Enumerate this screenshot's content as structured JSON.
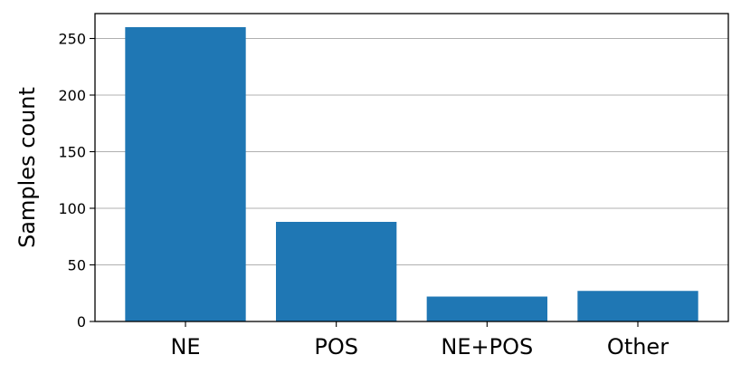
{
  "chart_data": {
    "type": "bar",
    "categories": [
      "NE",
      "POS",
      "NE+POS",
      "Other"
    ],
    "values": [
      260,
      88,
      22,
      27
    ],
    "title": "",
    "xlabel": "",
    "ylabel": "Samples count",
    "ylim": [
      0,
      272
    ],
    "yticks": [
      0,
      50,
      100,
      150,
      200,
      250
    ],
    "grid": "horizontal",
    "bar_color": "#1f77b4",
    "grid_color": "#b0b0b0"
  }
}
